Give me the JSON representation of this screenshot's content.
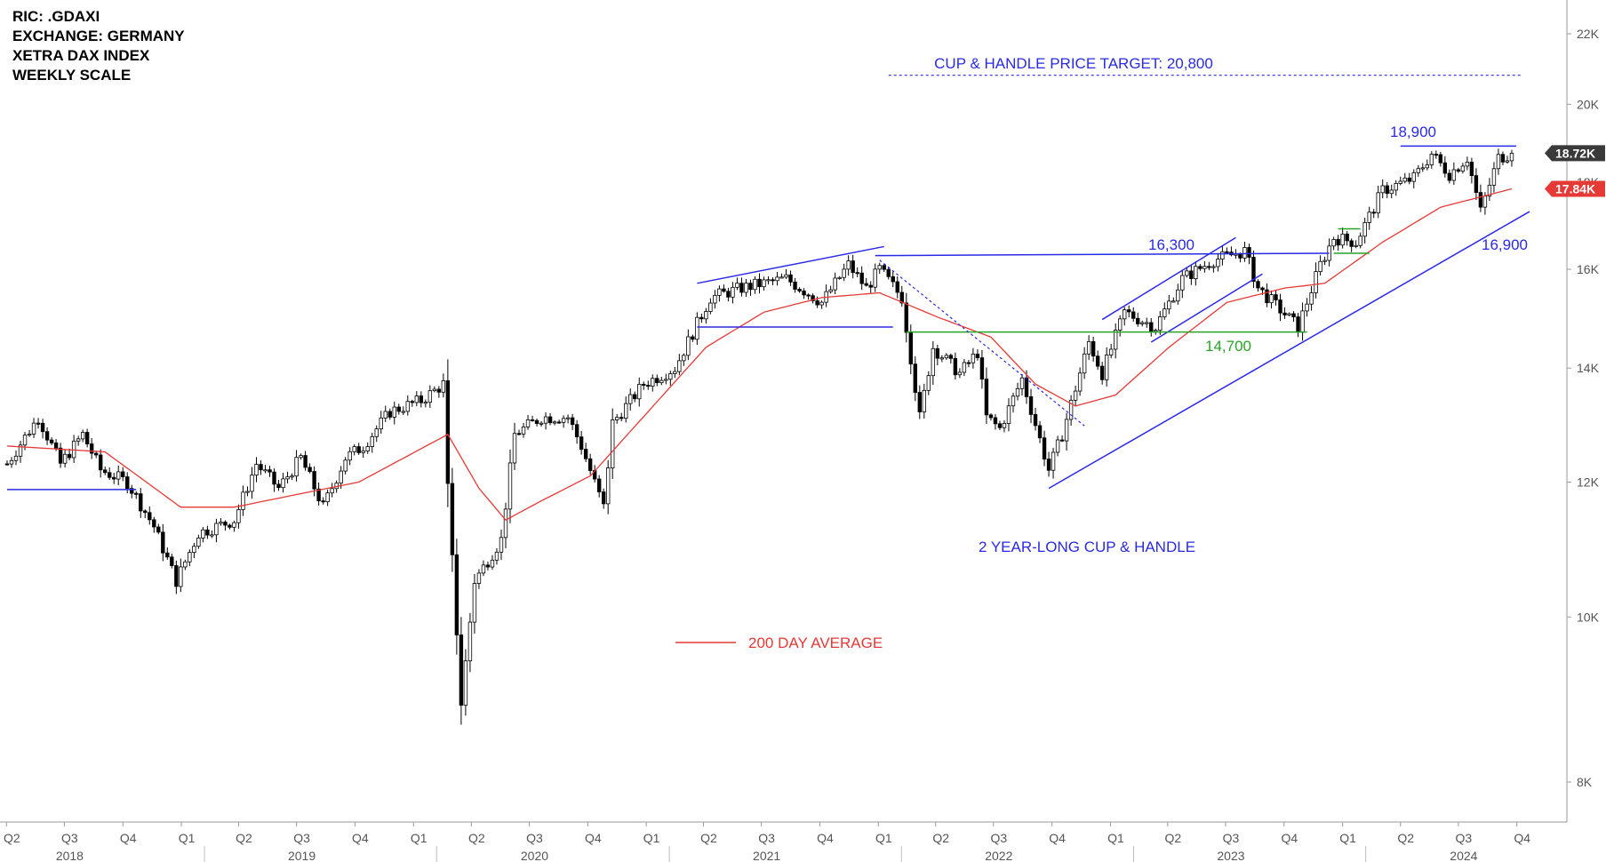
{
  "header": {
    "line1": "RIC: .GDAXI",
    "line2": "EXCHANGE: GERMANY",
    "line3": "XETRA DAX INDEX",
    "line4": "WEEKLY SCALE"
  },
  "annotations": {
    "target": "CUP & HANDLE PRICE TARGET: 20,800",
    "pattern": "2 YEAR-LONG CUP & HANDLE",
    "legend_ma": "200 DAY AVERAGE",
    "level_18900": "18,900",
    "level_16300": "16,300",
    "level_16900": "16,900",
    "level_14700": "14,700"
  },
  "colors": {
    "trend": "#2a2ae6",
    "ma": "#e53935",
    "support": "#27a327",
    "candle": "#000000",
    "last_price_bg": "#3a3a3a",
    "ma_price_bg": "#e53935"
  },
  "chart_data": {
    "type": "candlestick",
    "scale": "log",
    "ylim": [
      7700,
      22800
    ],
    "x_range": [
      "2018-04-02",
      "2024-10-21"
    ],
    "y_ticks": [
      {
        "value": 8000,
        "label": "8K"
      },
      {
        "value": 10000,
        "label": "10K"
      },
      {
        "value": 12000,
        "label": "12K"
      },
      {
        "value": 14000,
        "label": "14K"
      },
      {
        "value": 16000,
        "label": "16K"
      },
      {
        "value": 18000,
        "label": "18K"
      },
      {
        "value": 20000,
        "label": "20K"
      },
      {
        "value": 22000,
        "label": "22K"
      }
    ],
    "quarter_labels": [
      {
        "date": "2018-04-01",
        "label": "Q2"
      },
      {
        "date": "2018-07-01",
        "label": "Q3"
      },
      {
        "date": "2018-10-01",
        "label": "Q4"
      },
      {
        "date": "2019-01-01",
        "label": "Q1"
      },
      {
        "date": "2019-04-01",
        "label": "Q2"
      },
      {
        "date": "2019-07-01",
        "label": "Q3"
      },
      {
        "date": "2019-10-01",
        "label": "Q4"
      },
      {
        "date": "2020-01-01",
        "label": "Q1"
      },
      {
        "date": "2020-04-01",
        "label": "Q2"
      },
      {
        "date": "2020-07-01",
        "label": "Q3"
      },
      {
        "date": "2020-10-01",
        "label": "Q4"
      },
      {
        "date": "2021-01-01",
        "label": "Q1"
      },
      {
        "date": "2021-04-01",
        "label": "Q2"
      },
      {
        "date": "2021-07-01",
        "label": "Q3"
      },
      {
        "date": "2021-10-01",
        "label": "Q4"
      },
      {
        "date": "2022-01-01",
        "label": "Q1"
      },
      {
        "date": "2022-04-01",
        "label": "Q2"
      },
      {
        "date": "2022-07-01",
        "label": "Q3"
      },
      {
        "date": "2022-10-01",
        "label": "Q4"
      },
      {
        "date": "2023-01-01",
        "label": "Q1"
      },
      {
        "date": "2023-04-01",
        "label": "Q2"
      },
      {
        "date": "2023-07-01",
        "label": "Q3"
      },
      {
        "date": "2023-10-01",
        "label": "Q4"
      },
      {
        "date": "2024-01-01",
        "label": "Q1"
      },
      {
        "date": "2024-04-01",
        "label": "Q2"
      },
      {
        "date": "2024-07-01",
        "label": "Q3"
      },
      {
        "date": "2024-10-01",
        "label": "Q4"
      }
    ],
    "year_labels": [
      {
        "date": "2018-07-01",
        "label": "2018"
      },
      {
        "date": "2019-07-01",
        "label": "2019"
      },
      {
        "date": "2020-07-01",
        "label": "2020"
      },
      {
        "date": "2021-07-01",
        "label": "2021"
      },
      {
        "date": "2022-07-01",
        "label": "2022"
      },
      {
        "date": "2023-07-01",
        "label": "2023"
      },
      {
        "date": "2024-07-01",
        "label": "2024"
      }
    ],
    "price_anchors": [
      [
        "2018-04-02",
        12300
      ],
      [
        "2018-05-21",
        13100
      ],
      [
        "2018-06-25",
        12300
      ],
      [
        "2018-07-30",
        12800
      ],
      [
        "2018-08-27",
        12200
      ],
      [
        "2018-10-08",
        12000
      ],
      [
        "2018-11-19",
        11300
      ],
      [
        "2018-12-24",
        10500
      ],
      [
        "2019-01-28",
        11200
      ],
      [
        "2019-03-25",
        11400
      ],
      [
        "2019-04-29",
        12300
      ],
      [
        "2019-06-03",
        11900
      ],
      [
        "2019-07-08",
        12400
      ],
      [
        "2019-08-12",
        11600
      ],
      [
        "2019-09-16",
        12400
      ],
      [
        "2019-10-14",
        12600
      ],
      [
        "2019-11-25",
        13200
      ],
      [
        "2020-01-13",
        13400
      ],
      [
        "2020-02-17",
        13700
      ],
      [
        "2020-02-24",
        11900
      ],
      [
        "2020-03-16",
        8900
      ],
      [
        "2020-04-06",
        10500
      ],
      [
        "2020-05-18",
        11100
      ],
      [
        "2020-06-08",
        12800
      ],
      [
        "2020-07-20",
        13100
      ],
      [
        "2020-08-31",
        13100
      ],
      [
        "2020-09-21",
        12600
      ],
      [
        "2020-10-26",
        11600
      ],
      [
        "2020-11-09",
        13000
      ],
      [
        "2020-12-28",
        13700
      ],
      [
        "2021-02-15",
        14000
      ],
      [
        "2021-04-12",
        15400
      ],
      [
        "2021-05-31",
        15600
      ],
      [
        "2021-08-09",
        15800
      ],
      [
        "2021-10-04",
        15300
      ],
      [
        "2021-11-15",
        16100
      ],
      [
        "2021-12-13",
        15600
      ],
      [
        "2022-01-03",
        16000
      ],
      [
        "2022-02-07",
        15400
      ],
      [
        "2022-03-07",
        13100
      ],
      [
        "2022-03-28",
        14400
      ],
      [
        "2022-05-09",
        13900
      ],
      [
        "2022-06-06",
        14300
      ],
      [
        "2022-06-20",
        13100
      ],
      [
        "2022-07-11",
        12900
      ],
      [
        "2022-08-15",
        13800
      ],
      [
        "2022-09-26",
        12200
      ],
      [
        "2022-10-17",
        12800
      ],
      [
        "2022-11-28",
        14500
      ],
      [
        "2022-12-19",
        13900
      ],
      [
        "2023-01-23",
        15100
      ],
      [
        "2023-03-13",
        14800
      ],
      [
        "2023-04-24",
        15800
      ],
      [
        "2023-06-12",
        16200
      ],
      [
        "2023-07-31",
        16400
      ],
      [
        "2023-08-21",
        15600
      ],
      [
        "2023-10-23",
        14800
      ],
      [
        "2023-11-27",
        16100
      ],
      [
        "2023-12-18",
        16700
      ],
      [
        "2024-01-22",
        16600
      ],
      [
        "2024-03-04",
        17800
      ],
      [
        "2024-04-22",
        18100
      ],
      [
        "2024-05-20",
        18700
      ],
      [
        "2024-06-17",
        18200
      ],
      [
        "2024-07-15",
        18600
      ],
      [
        "2024-08-05",
        17300
      ],
      [
        "2024-09-02",
        18600
      ],
      [
        "2024-09-23",
        18720
      ]
    ],
    "ma_anchors": [
      [
        "2018-04-02",
        12600
      ],
      [
        "2018-09-03",
        12500
      ],
      [
        "2018-12-31",
        11600
      ],
      [
        "2019-03-25",
        11600
      ],
      [
        "2019-07-01",
        11800
      ],
      [
        "2019-10-07",
        12000
      ],
      [
        "2020-02-24",
        12800
      ],
      [
        "2020-04-13",
        11900
      ],
      [
        "2020-05-25",
        11400
      ],
      [
        "2020-07-20",
        11700
      ],
      [
        "2020-10-05",
        12100
      ],
      [
        "2021-01-04",
        13200
      ],
      [
        "2021-04-05",
        14400
      ],
      [
        "2021-07-05",
        15100
      ],
      [
        "2021-10-04",
        15400
      ],
      [
        "2022-01-03",
        15500
      ],
      [
        "2022-04-04",
        15000
      ],
      [
        "2022-06-27",
        14600
      ],
      [
        "2022-09-05",
        13700
      ],
      [
        "2022-11-07",
        13300
      ],
      [
        "2023-01-09",
        13500
      ],
      [
        "2023-04-03",
        14400
      ],
      [
        "2023-07-03",
        15300
      ],
      [
        "2023-10-02",
        15600
      ],
      [
        "2023-12-04",
        15700
      ],
      [
        "2024-03-04",
        16600
      ],
      [
        "2024-06-03",
        17400
      ],
      [
        "2024-09-23",
        17840
      ]
    ],
    "trend_lines": [
      {
        "name": "rising-support",
        "color": "trend",
        "from": [
          "2022-09-26",
          11900
        ],
        "to": [
          "2024-10-21",
          17300
        ]
      },
      {
        "name": "neckline-16300",
        "color": "trend",
        "from": [
          "2021-12-27",
          16300
        ],
        "to": [
          "2023-12-11",
          16350
        ]
      },
      {
        "name": "top-18900",
        "color": "trend",
        "from": [
          "2024-04-01",
          18900
        ],
        "to": [
          "2024-09-30",
          18900
        ]
      },
      {
        "name": "wedge-upper-2021",
        "color": "trend",
        "from": [
          "2021-03-22",
          15700
        ],
        "to": [
          "2022-01-10",
          16500
        ]
      },
      {
        "name": "wedge-lower-2021",
        "color": "trend",
        "from": [
          "2021-03-22",
          14800
        ],
        "to": [
          "2022-01-24",
          14800
        ]
      },
      {
        "name": "channel-upper-2023",
        "color": "trend",
        "from": [
          "2022-12-19",
          14950
        ],
        "to": [
          "2023-07-17",
          16700
        ]
      },
      {
        "name": "channel-lower-2023",
        "color": "trend",
        "from": [
          "2023-03-06",
          14500
        ],
        "to": [
          "2023-08-28",
          15900
        ]
      },
      {
        "name": "support-14700",
        "color": "support",
        "from": [
          "2022-02-14",
          14700
        ],
        "to": [
          "2023-11-06",
          14700
        ]
      },
      {
        "name": "flag-top",
        "color": "support",
        "from": [
          "2023-12-25",
          16900
        ],
        "to": [
          "2024-01-29",
          16900
        ]
      },
      {
        "name": "flag-bottom",
        "color": "support",
        "from": [
          "2023-12-18",
          16350
        ],
        "to": [
          "2024-02-12",
          16350
        ]
      },
      {
        "name": "base-2018",
        "color": "trend",
        "from": [
          "2018-04-02",
          11880
        ],
        "to": [
          "2018-10-22",
          11880
        ]
      }
    ],
    "dashed_lines": [
      {
        "name": "downtrend-2022",
        "from": [
          "2022-01-03",
          16200
        ],
        "to": [
          "2022-11-21",
          12950
        ]
      },
      {
        "name": "price-target",
        "from": [
          "2022-01-17",
          20800
        ],
        "to": [
          "2024-10-07",
          20800
        ]
      }
    ],
    "price_labels": [
      {
        "name": "last",
        "value": "18.72K",
        "price": 18720
      },
      {
        "name": "ma",
        "value": "17.84K",
        "price": 17840
      }
    ]
  }
}
